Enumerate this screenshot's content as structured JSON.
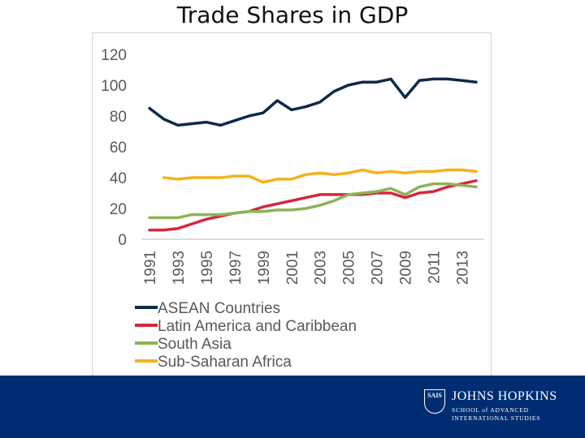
{
  "slide": {
    "title": "Trade Shares in GDP"
  },
  "chart_data": {
    "type": "line",
    "title": "",
    "xlabel": "",
    "ylabel": "",
    "ylim": [
      0,
      120
    ],
    "yticks": [
      0,
      20,
      40,
      60,
      80,
      100,
      120
    ],
    "x": [
      1991,
      1992,
      1993,
      1994,
      1995,
      1996,
      1997,
      1998,
      1999,
      2000,
      2001,
      2002,
      2003,
      2004,
      2005,
      2006,
      2007,
      2008,
      2009,
      2010,
      2011,
      2012,
      2013,
      2014
    ],
    "xtick_labels": [
      "1991",
      "1993",
      "1995",
      "1997",
      "1999",
      "2001",
      "2003",
      "2005",
      "2007",
      "2009",
      "2011",
      "2013"
    ],
    "grid": false,
    "legend_position": "bottom",
    "series": [
      {
        "name": "ASEAN Countries",
        "color": "#0d2a4b",
        "values": [
          85,
          78,
          74,
          75,
          76,
          74,
          77,
          80,
          82,
          90,
          84,
          86,
          89,
          96,
          100,
          102,
          102,
          104,
          92,
          103,
          104,
          104,
          103,
          102
        ]
      },
      {
        "name": "Latin America and Caribbean",
        "color": "#d7263d",
        "values": [
          6,
          6,
          7,
          10,
          13,
          15,
          17,
          18,
          21,
          23,
          25,
          27,
          29,
          29,
          29,
          29,
          30,
          30,
          27,
          30,
          31,
          34,
          36,
          38
        ]
      },
      {
        "name": "South Asia",
        "color": "#8db356",
        "values": [
          14,
          14,
          14,
          16,
          16,
          16,
          17,
          18,
          18,
          19,
          19,
          20,
          22,
          25,
          29,
          30,
          31,
          33,
          29,
          34,
          36,
          36,
          35,
          34
        ]
      },
      {
        "name": "Sub-Saharan Africa",
        "color": "#f5b21b",
        "values": [
          null,
          40,
          39,
          40,
          40,
          40,
          41,
          41,
          37,
          39,
          39,
          42,
          43,
          42,
          43,
          45,
          43,
          44,
          43,
          44,
          44,
          45,
          45,
          44
        ]
      }
    ]
  },
  "logo": {
    "shield_text": "SAIS",
    "name": "JOHNS HOPKINS",
    "sub_line1": "SCHOOL of ADVANCED",
    "sub_line2": "INTERNATIONAL STUDIES"
  },
  "colors": {
    "footer_band": "#002d72",
    "axis_text": "#595959"
  }
}
